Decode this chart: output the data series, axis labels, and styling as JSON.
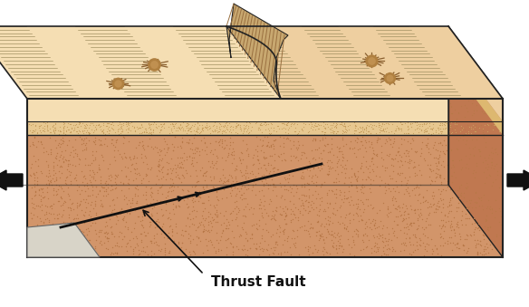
{
  "label_text": "Thrust Fault",
  "label_fontsize": 11,
  "label_fontweight": "bold",
  "bg_color": "#ffffff",
  "surface_color": "#f5deb3",
  "surface_color_right": "#eecfa0",
  "regolith_color": "#e8c89a",
  "subsurface_color": "#d2956a",
  "subsurface_dark": "#b87848",
  "subsurface_side": "#c07850",
  "scarp_color": "#c8a870",
  "scarp_stripe": "#9a7040",
  "outline_color": "#222222",
  "line_color": "#888060",
  "crater_color": "#b08040",
  "crater_line": "#8a6030",
  "arrow_color": "#111111",
  "fault_color": "#111111",
  "wedge_color": "#d8d4c8",
  "fig_width": 5.84,
  "fig_height": 3.39,
  "dpi": 100
}
